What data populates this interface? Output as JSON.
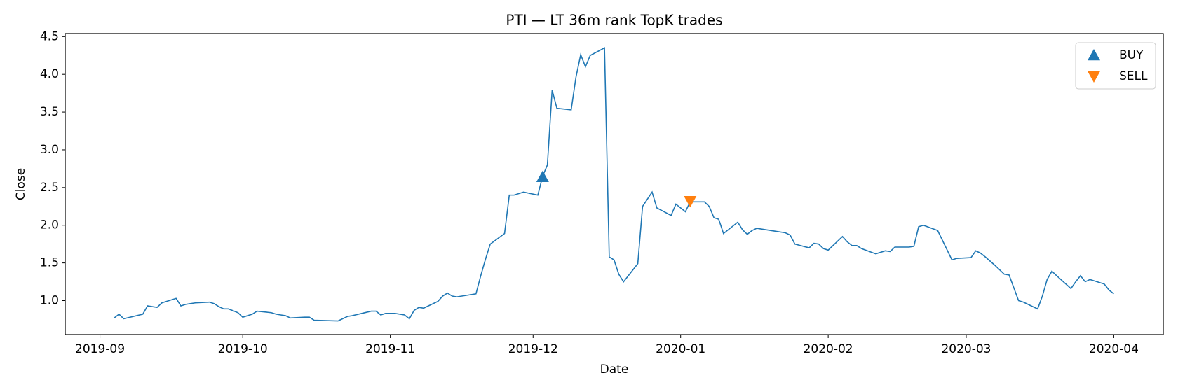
{
  "chart_data": {
    "type": "line",
    "title": "PTI — LT 36m rank TopK trades",
    "xlabel": "Date",
    "ylabel": "Close",
    "x": [
      3,
      4,
      5,
      9,
      10,
      12,
      13,
      16,
      17,
      18,
      19,
      20,
      23,
      24,
      25,
      26,
      27,
      29,
      30,
      31,
      32,
      33,
      36,
      37,
      38,
      39,
      40,
      43,
      44,
      45,
      50,
      51,
      52,
      53,
      55,
      57,
      58,
      59,
      60,
      62,
      64,
      65,
      66,
      67,
      68,
      71,
      72,
      73,
      74,
      75,
      78,
      79,
      80,
      81,
      82,
      85,
      86,
      87,
      89,
      92,
      93,
      94,
      95,
      96,
      99,
      100,
      101,
      102,
      103,
      106,
      107,
      108,
      109,
      110,
      113,
      114,
      116,
      117,
      120,
      121,
      123,
      124,
      127,
      128,
      129,
      130,
      131,
      134,
      135,
      136,
      137,
      138,
      141,
      144,
      145,
      146,
      149,
      150,
      151,
      152,
      153,
      156,
      157,
      158,
      159,
      160,
      163,
      165,
      166,
      167,
      170,
      171,
      172,
      173,
      176,
      179,
      180,
      183,
      184,
      185,
      186,
      188,
      190,
      191,
      193,
      194,
      197,
      198,
      199,
      200,
      201,
      204,
      205,
      206,
      207,
      208,
      211,
      212,
      213
    ],
    "values": [
      0.77,
      0.82,
      0.76,
      0.82,
      0.93,
      0.91,
      0.97,
      1.03,
      0.93,
      0.95,
      0.96,
      0.97,
      0.98,
      0.96,
      0.92,
      0.89,
      0.89,
      0.84,
      0.78,
      0.8,
      0.82,
      0.86,
      0.84,
      0.82,
      0.81,
      0.8,
      0.77,
      0.78,
      0.78,
      0.74,
      0.73,
      0.76,
      0.79,
      0.8,
      0.83,
      0.86,
      0.86,
      0.81,
      0.83,
      0.83,
      0.81,
      0.76,
      0.87,
      0.91,
      0.9,
      0.99,
      1.06,
      1.1,
      1.06,
      1.05,
      1.08,
      1.09,
      1.33,
      1.55,
      1.75,
      1.89,
      2.4,
      2.4,
      2.44,
      2.4,
      2.65,
      2.8,
      3.79,
      3.55,
      3.53,
      3.96,
      4.26,
      4.1,
      4.25,
      4.35,
      1.58,
      1.54,
      1.35,
      1.25,
      1.49,
      2.25,
      2.44,
      2.23,
      2.13,
      2.28,
      2.18,
      2.31,
      2.31,
      2.25,
      2.1,
      2.08,
      1.89,
      2.04,
      1.94,
      1.88,
      1.93,
      1.96,
      1.93,
      1.9,
      1.87,
      1.75,
      1.7,
      1.76,
      1.75,
      1.69,
      1.67,
      1.85,
      1.78,
      1.73,
      1.73,
      1.69,
      1.62,
      1.66,
      1.65,
      1.71,
      1.71,
      1.72,
      1.98,
      2.0,
      1.93,
      1.54,
      1.56,
      1.57,
      1.66,
      1.63,
      1.58,
      1.47,
      1.35,
      1.34,
      1.0,
      0.98,
      0.89,
      1.06,
      1.28,
      1.39,
      1.33,
      1.16,
      1.25,
      1.33,
      1.25,
      1.28,
      1.22,
      1.14,
      1.09
    ],
    "color": "#1f77b4",
    "trades": [
      {
        "name": "BUY",
        "marker": "up",
        "color": "#1f77b4",
        "x": [
          93
        ],
        "values": [
          2.64
        ]
      },
      {
        "name": "SELL",
        "marker": "down",
        "color": "#ff7f0e",
        "x": [
          124
        ],
        "values": [
          2.32
        ]
      }
    ],
    "xlim": [
      -7.3,
      223.4
    ],
    "xticks": [
      {
        "value": 0,
        "label": "2019-09"
      },
      {
        "value": 30,
        "label": "2019-10"
      },
      {
        "value": 61,
        "label": "2019-11"
      },
      {
        "value": 91,
        "label": "2019-12"
      },
      {
        "value": 122,
        "label": "2020-01"
      },
      {
        "value": 153,
        "label": "2020-02"
      },
      {
        "value": 182,
        "label": "2020-03"
      },
      {
        "value": 213,
        "label": "2020-04"
      }
    ],
    "ylim": [
      0.55,
      4.54
    ],
    "yticks": [
      {
        "value": 1,
        "label": "1.0"
      },
      1.5,
      {
        "value": 2,
        "label": "2.0"
      },
      2.5,
      {
        "value": 3,
        "label": "3.0"
      },
      3.5,
      {
        "value": 4,
        "label": "4.0"
      },
      4.5
    ],
    "grid": false,
    "legend": "upper right"
  }
}
